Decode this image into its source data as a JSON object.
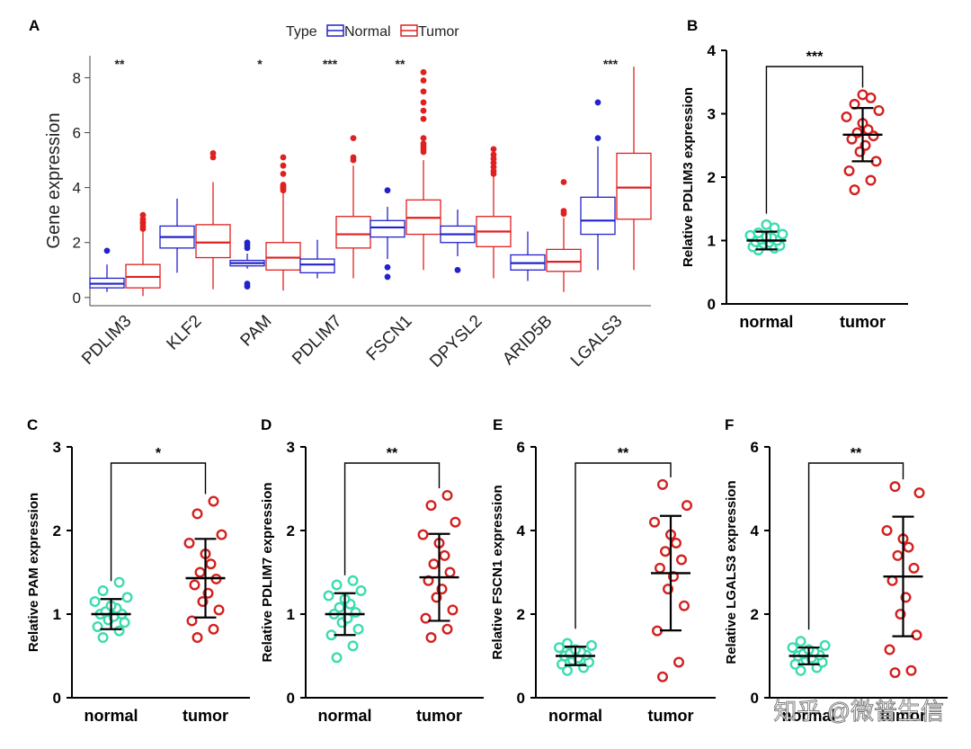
{
  "panel_labels": {
    "A": "A",
    "B": "B",
    "C": "C",
    "D": "D",
    "E": "E",
    "F": "F"
  },
  "colors": {
    "normal": "#2222cc",
    "tumor": "#e02020",
    "dot_normal": "#3cdcb0",
    "dot_tumor": "#d42020",
    "black": "#000000"
  },
  "watermark": "知乎 @微普生信",
  "chart_data": [
    {
      "panel": "A",
      "type": "box",
      "ylabel": "Gene expression",
      "ylim": [
        -0.3,
        8.8
      ],
      "yticks": [
        "0",
        "2",
        "4",
        "6",
        "8"
      ],
      "legend": {
        "title": "Type",
        "items": [
          "Normal",
          "Tumor"
        ],
        "placement": "top"
      },
      "categories": [
        "PDLIM3",
        "KLF2",
        "PAM",
        "PDLIM7",
        "FSCN1",
        "DPYSL2",
        "ARID5B",
        "LGALS3"
      ],
      "significance": [
        "**",
        "",
        "*",
        "***",
        "**",
        "",
        "",
        "***"
      ],
      "series": [
        {
          "name": "Normal",
          "boxes": [
            {
              "min": 0.2,
              "q1": 0.35,
              "median": 0.5,
              "q3": 0.7,
              "max": 1.2,
              "outliers": [
                1.7
              ]
            },
            {
              "min": 0.9,
              "q1": 1.8,
              "median": 2.2,
              "q3": 2.6,
              "max": 3.6,
              "outliers": []
            },
            {
              "min": 1.05,
              "q1": 1.15,
              "median": 1.25,
              "q3": 1.35,
              "max": 1.6,
              "outliers": [
                1.8,
                1.9,
                2.0,
                0.4,
                0.5
              ]
            },
            {
              "min": 0.7,
              "q1": 0.9,
              "median": 1.2,
              "q3": 1.4,
              "max": 2.1,
              "outliers": []
            },
            {
              "min": 1.4,
              "q1": 2.2,
              "median": 2.55,
              "q3": 2.8,
              "max": 3.3,
              "outliers": [
                3.9,
                1.1,
                0.75
              ]
            },
            {
              "min": 1.5,
              "q1": 2.0,
              "median": 2.3,
              "q3": 2.6,
              "max": 3.2,
              "outliers": [
                1.0
              ]
            },
            {
              "min": 0.6,
              "q1": 1.0,
              "median": 1.25,
              "q3": 1.55,
              "max": 2.4,
              "outliers": []
            },
            {
              "min": 1.0,
              "q1": 2.3,
              "median": 2.8,
              "q3": 3.65,
              "max": 5.5,
              "outliers": [
                5.8,
                7.1
              ]
            }
          ]
        },
        {
          "name": "Tumor",
          "boxes": [
            {
              "min": 0.05,
              "q1": 0.35,
              "median": 0.75,
              "q3": 1.2,
              "max": 2.4,
              "outliers": [
                2.5,
                2.6,
                2.7,
                2.75,
                2.85,
                3.0
              ]
            },
            {
              "min": 0.3,
              "q1": 1.45,
              "median": 2.0,
              "q3": 2.65,
              "max": 4.2,
              "outliers": [
                5.1,
                5.25
              ]
            },
            {
              "min": 0.25,
              "q1": 1.0,
              "median": 1.45,
              "q3": 2.0,
              "max": 3.8,
              "outliers": [
                3.9,
                3.95,
                4.0,
                4.05,
                4.1,
                4.5,
                4.8,
                5.1
              ]
            },
            {
              "min": 0.7,
              "q1": 1.8,
              "median": 2.3,
              "q3": 2.95,
              "max": 4.8,
              "outliers": [
                5.0,
                5.1,
                5.8
              ]
            },
            {
              "min": 1.0,
              "q1": 2.3,
              "median": 2.9,
              "q3": 3.55,
              "max": 5.0,
              "outliers": [
                5.3,
                5.4,
                5.5,
                5.6,
                5.8,
                6.5,
                6.8,
                7.1,
                7.5,
                7.9,
                8.2
              ]
            },
            {
              "min": 0.7,
              "q1": 1.85,
              "median": 2.4,
              "q3": 2.95,
              "max": 4.4,
              "outliers": [
                4.5,
                4.6,
                4.75,
                4.9,
                5.05,
                5.2,
                5.4
              ]
            },
            {
              "min": 0.2,
              "q1": 0.95,
              "median": 1.3,
              "q3": 1.75,
              "max": 2.9,
              "outliers": [
                3.05,
                3.15,
                4.2
              ]
            },
            {
              "min": 1.0,
              "q1": 2.85,
              "median": 4.0,
              "q3": 5.25,
              "max": 8.4,
              "outliers": []
            }
          ]
        }
      ]
    },
    {
      "panel": "B",
      "type": "scatter",
      "ylabel": "Relative PDLIM3 expression",
      "ylim": [
        0,
        4
      ],
      "yticks": [
        "0",
        "1",
        "2",
        "3",
        "4"
      ],
      "categories": [
        "normal",
        "tumor"
      ],
      "significance": "***",
      "groups": [
        {
          "name": "normal",
          "mean": 1.0,
          "sd": 0.14,
          "values": [
            0.85,
            0.88,
            0.9,
            0.92,
            0.95,
            0.97,
            0.98,
            1.0,
            1.02,
            1.04,
            1.06,
            1.08,
            1.1,
            1.12,
            1.2,
            1.25
          ]
        },
        {
          "name": "tumor",
          "mean": 2.67,
          "sd": 0.42,
          "values": [
            1.8,
            1.95,
            2.1,
            2.25,
            2.4,
            2.5,
            2.6,
            2.65,
            2.7,
            2.75,
            2.85,
            2.95,
            3.05,
            3.15,
            3.25,
            3.3
          ]
        }
      ]
    },
    {
      "panel": "C",
      "type": "scatter",
      "ylabel": "Relative PAM expression",
      "ylim": [
        0,
        3
      ],
      "yticks": [
        "0",
        "1",
        "2",
        "3"
      ],
      "categories": [
        "normal",
        "tumor"
      ],
      "significance": "*",
      "groups": [
        {
          "name": "normal",
          "mean": 1.0,
          "sd": 0.18,
          "values": [
            0.72,
            0.8,
            0.85,
            0.9,
            0.93,
            0.97,
            1.0,
            1.0,
            1.03,
            1.07,
            1.1,
            1.15,
            1.2,
            1.28,
            1.38
          ]
        },
        {
          "name": "tumor",
          "mean": 1.43,
          "sd": 0.47,
          "values": [
            0.72,
            0.82,
            0.92,
            1.05,
            1.15,
            1.25,
            1.35,
            1.42,
            1.5,
            1.6,
            1.72,
            1.85,
            1.95,
            2.2,
            2.35
          ]
        }
      ]
    },
    {
      "panel": "D",
      "type": "scatter",
      "ylabel": "Relative PDLIM7 expression",
      "ylim": [
        0,
        3
      ],
      "yticks": [
        "0",
        "1",
        "2",
        "3"
      ],
      "categories": [
        "normal",
        "tumor"
      ],
      "significance": "**",
      "groups": [
        {
          "name": "normal",
          "mean": 1.0,
          "sd": 0.25,
          "values": [
            0.48,
            0.62,
            0.75,
            0.82,
            0.9,
            0.95,
            1.0,
            1.02,
            1.08,
            1.12,
            1.18,
            1.22,
            1.28,
            1.35,
            1.4
          ]
        },
        {
          "name": "tumor",
          "mean": 1.44,
          "sd": 0.52,
          "values": [
            0.72,
            0.82,
            0.95,
            1.05,
            1.2,
            1.3,
            1.4,
            1.5,
            1.6,
            1.7,
            1.85,
            1.95,
            2.1,
            2.3,
            2.42
          ]
        }
      ]
    },
    {
      "panel": "E",
      "type": "scatter",
      "ylabel": "Relative FSCN1 expression",
      "ylim": [
        0,
        6
      ],
      "yticks": [
        "0",
        "2",
        "4",
        "6"
      ],
      "categories": [
        "normal",
        "tumor"
      ],
      "significance": "**",
      "groups": [
        {
          "name": "normal",
          "mean": 1.0,
          "sd": 0.22,
          "values": [
            0.65,
            0.72,
            0.8,
            0.85,
            0.9,
            0.95,
            1.0,
            1.02,
            1.05,
            1.1,
            1.15,
            1.2,
            1.25,
            1.3
          ]
        },
        {
          "name": "tumor",
          "mean": 2.98,
          "sd": 1.37,
          "values": [
            0.5,
            0.85,
            1.6,
            2.2,
            2.6,
            2.9,
            3.1,
            3.3,
            3.5,
            3.7,
            3.9,
            4.2,
            4.6,
            5.1
          ]
        }
      ]
    },
    {
      "panel": "F",
      "type": "scatter",
      "ylabel": "Relative LGALS3 expression",
      "ylim": [
        0,
        6
      ],
      "yticks": [
        "0",
        "2",
        "4",
        "6"
      ],
      "categories": [
        "normal",
        "tumor"
      ],
      "significance": "**",
      "groups": [
        {
          "name": "normal",
          "mean": 1.0,
          "sd": 0.2,
          "values": [
            0.65,
            0.72,
            0.8,
            0.85,
            0.9,
            0.95,
            1.0,
            1.02,
            1.05,
            1.1,
            1.15,
            1.2,
            1.25,
            1.35
          ]
        },
        {
          "name": "tumor",
          "mean": 2.9,
          "sd": 1.43,
          "values": [
            0.6,
            0.65,
            1.15,
            1.5,
            2.0,
            2.4,
            2.8,
            3.1,
            3.4,
            3.6,
            3.8,
            4.0,
            4.9,
            5.05
          ]
        }
      ]
    }
  ]
}
